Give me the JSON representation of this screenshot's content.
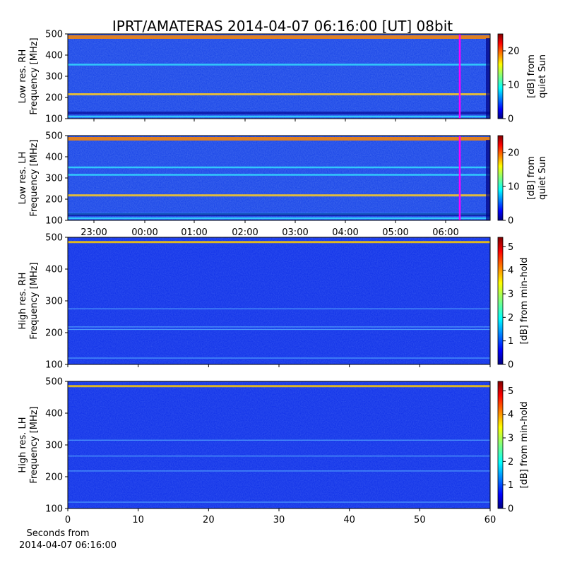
{
  "title": "IPRT/AMATERAS 2014-04-07 06:16:00 [UT]   08bit",
  "chart_data": [
    {
      "type": "heatmap",
      "panel": "Low res. RH",
      "ylabel_line1": "Low res. RH",
      "ylabel_line2": "Frequency [MHz]",
      "ylim": [
        100,
        500
      ],
      "yticks": [
        "100",
        "200",
        "300",
        "400",
        "500"
      ],
      "colorbar": {
        "label_line1": "[dB] from",
        "label_line2": "quiet Sun",
        "range": [
          0,
          25
        ],
        "ticks": [
          "0",
          "10",
          "20"
        ]
      },
      "marker_time": "06:16",
      "bands_mhz": [
        485,
        355,
        215,
        110
      ]
    },
    {
      "type": "heatmap",
      "panel": "Low res. LH",
      "ylabel_line1": "Low res. LH",
      "ylabel_line2": "Frequency [MHz]",
      "ylim": [
        100,
        500
      ],
      "yticks": [
        "100",
        "200",
        "300",
        "400",
        "500"
      ],
      "xticks": [
        "23:00",
        "00:00",
        "01:00",
        "02:00",
        "03:00",
        "04:00",
        "05:00",
        "06:00"
      ],
      "colorbar": {
        "label_line1": "[dB] from",
        "label_line2": "quiet Sun",
        "range": [
          0,
          25
        ],
        "ticks": [
          "0",
          "10",
          "20"
        ]
      },
      "marker_time": "06:16",
      "bands_mhz": [
        485,
        350,
        315,
        218,
        130,
        110
      ]
    },
    {
      "type": "heatmap",
      "panel": "High res. RH",
      "ylabel_line1": "High res. RH",
      "ylabel_line2": "Frequency [MHz]",
      "ylim": [
        100,
        500
      ],
      "yticks": [
        "100",
        "200",
        "300",
        "400",
        "500"
      ],
      "colorbar": {
        "label": "[dB] from min-hold",
        "range": [
          0,
          5.4
        ],
        "ticks": [
          "0",
          "1",
          "2",
          "3",
          "4",
          "5"
        ]
      },
      "bands_mhz": [
        485,
        275,
        218,
        210,
        120
      ]
    },
    {
      "type": "heatmap",
      "panel": "High res. LH",
      "ylabel_line1": "High res. LH",
      "ylabel_line2": "Frequency [MHz]",
      "ylim": [
        100,
        500
      ],
      "yticks": [
        "100",
        "200",
        "300",
        "400",
        "500"
      ],
      "xlim": [
        0,
        60
      ],
      "xticks": [
        "0",
        "10",
        "20",
        "30",
        "40",
        "50",
        "60"
      ],
      "xlabel_line1": "Seconds from",
      "xlabel_line2": "2014-04-07 06:16:00",
      "colorbar": {
        "label": "[dB] from min-hold",
        "range": [
          0,
          5.4
        ],
        "ticks": [
          "0",
          "1",
          "2",
          "3",
          "4",
          "5"
        ]
      },
      "bands_mhz": [
        485,
        315,
        265,
        218,
        120
      ]
    }
  ],
  "colors": {
    "jet": [
      "#00007f",
      "#0000ff",
      "#007fff",
      "#00ffff",
      "#7fff7f",
      "#ffff00",
      "#ff7f00",
      "#ff0000",
      "#7f0000"
    ],
    "marker": "#ff00ff"
  }
}
